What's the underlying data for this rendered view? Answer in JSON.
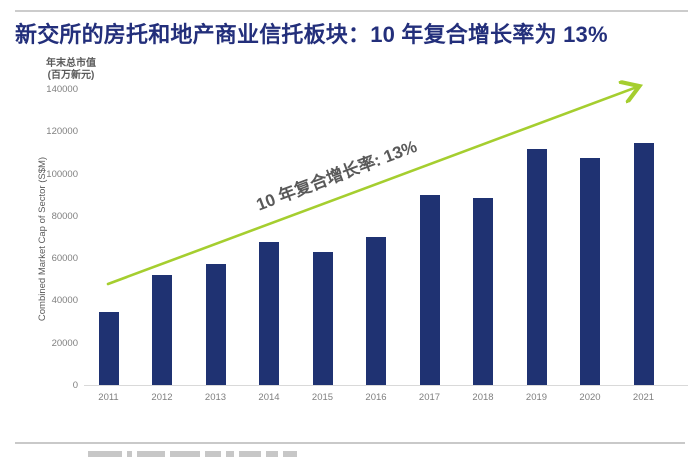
{
  "title": "新交所的房托和地产商业信托板块：10 年复合增长率为 13%",
  "y_axis": {
    "header_line1": "年末总市值",
    "header_line2": "(百万新元)",
    "rotated_label": "Combined Market Cap of Sector (S$M)"
  },
  "annotation": "10 年复合增长率: 13%",
  "colors": {
    "bar": "#1F3272",
    "title": "#232F7B",
    "arrow": "#A5CE2F",
    "annotation_text": "#595959",
    "tick_text": "#7F7F7F",
    "axis_line": "#D9D9D9"
  },
  "chart_data": {
    "type": "bar",
    "title": "新交所的房托和地产商业信托板块：10 年复合增长率为 13%",
    "categories": [
      "2011",
      "2012",
      "2013",
      "2014",
      "2015",
      "2016",
      "2017",
      "2018",
      "2019",
      "2020",
      "2021"
    ],
    "values": [
      34500,
      52000,
      57000,
      67500,
      63000,
      70000,
      90000,
      88500,
      111500,
      107500,
      114500
    ],
    "xlabel": "",
    "ylabel": "Combined Market Cap of Sector (S$M)",
    "y_axis_header": "年末总市值 (百万新元)",
    "ylim": [
      0,
      140000
    ],
    "ytick_step": 20000,
    "grid": false,
    "legend": false,
    "annotation": "10 年复合增长率: 13%",
    "annotation_style": "green rising arrow with rotated label above it"
  }
}
